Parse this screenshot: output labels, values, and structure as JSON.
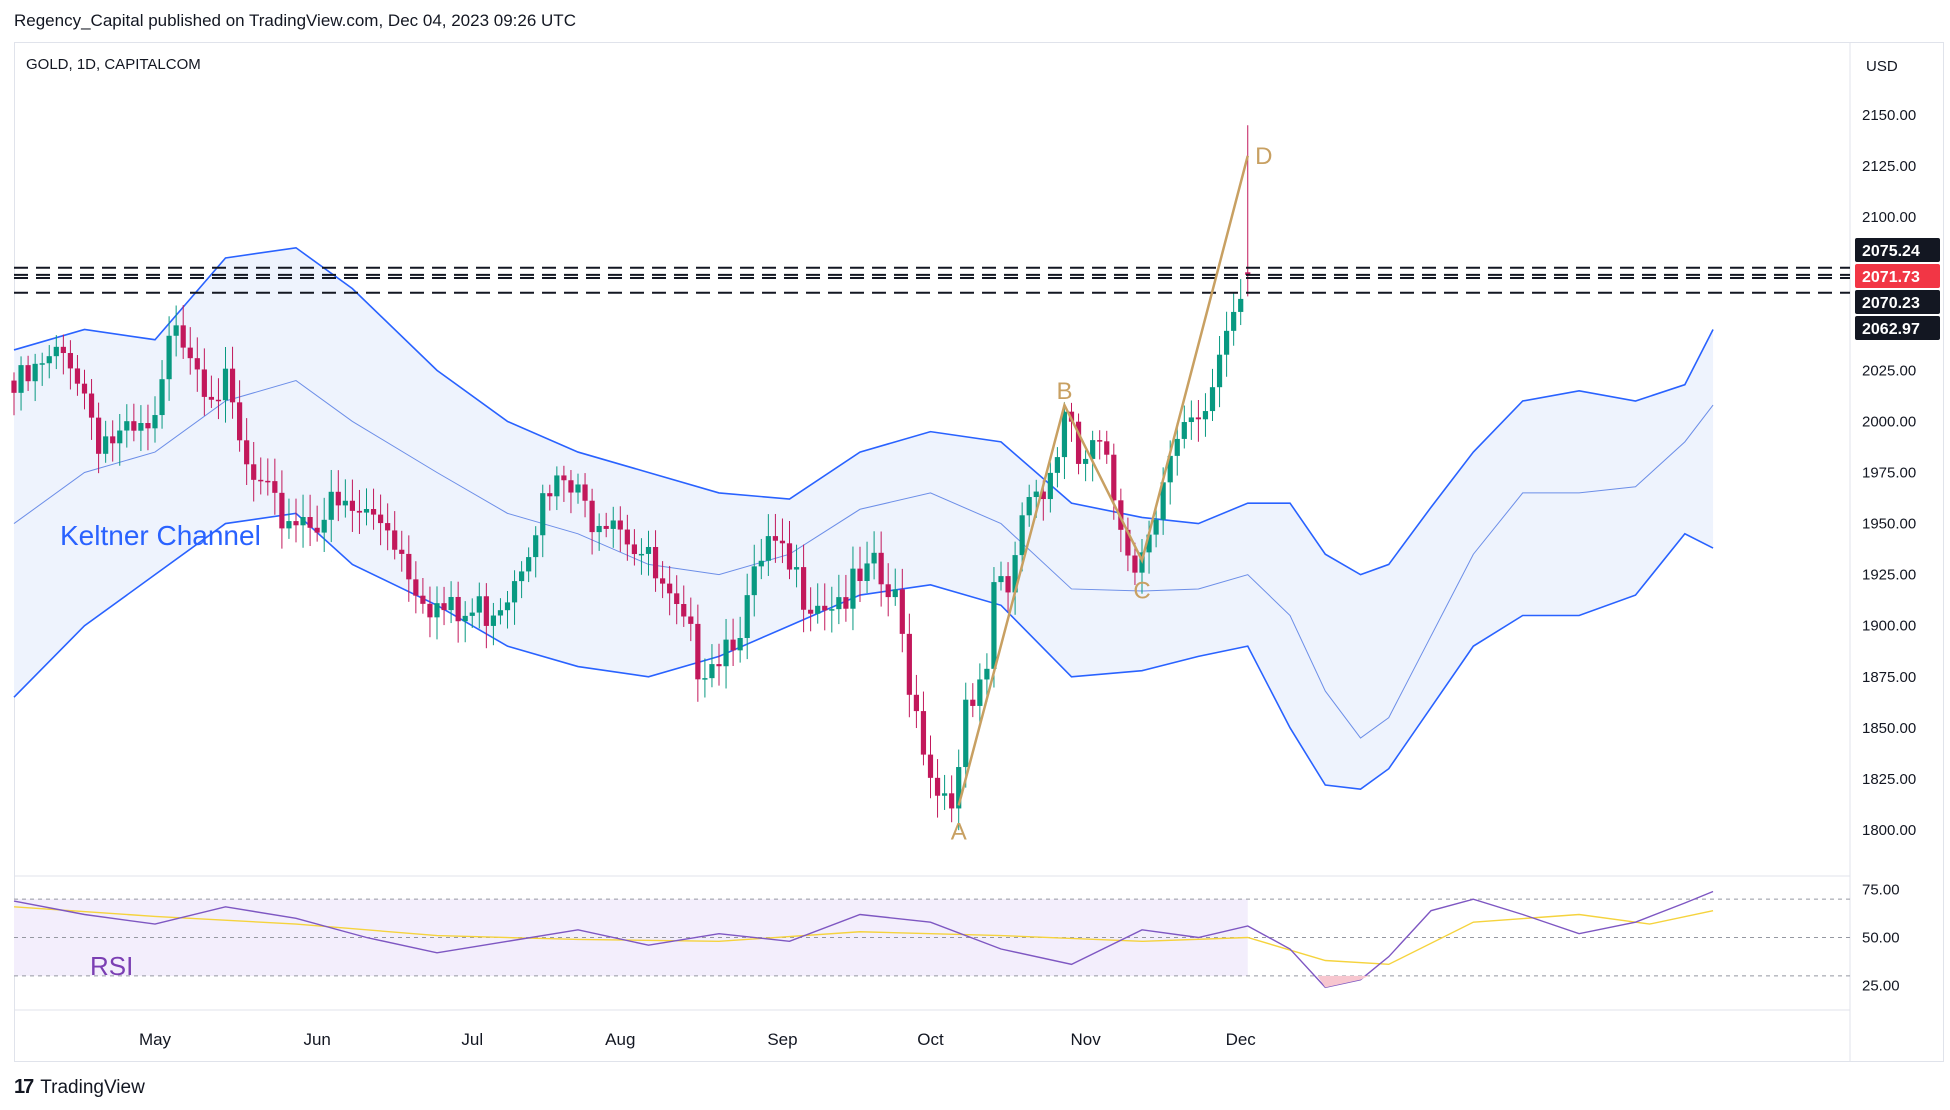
{
  "header": {
    "published_line": "Regency_Capital published on TradingView.com, Dec 04, 2023 09:26 UTC"
  },
  "symbol": {
    "title": "GOLD, 1D, CAPITALCOM",
    "currency": "USD"
  },
  "footer": {
    "brand": "TradingView",
    "brand_mark": "17"
  },
  "colors": {
    "up": "#089981",
    "down": "#c2185b",
    "keltner_band": "#2962ff",
    "keltner_basis": "#6c8ee8",
    "keltner_fill": "#eef3fd",
    "pattern": "#c8a062",
    "rsi_line": "#7e57c2",
    "rsi_ma": "#f5d33d",
    "rsi_fill": "#f3eefc"
  },
  "price_labels": [
    {
      "value": "2075.24",
      "bg": "#131722"
    },
    {
      "value": "2071.73",
      "bg": "#f23645"
    },
    {
      "value": "2070.23",
      "bg": "#131722"
    },
    {
      "value": "2062.97",
      "bg": "#131722"
    }
  ],
  "annotations": {
    "keltner": "Keltner Channel",
    "rsi": "RSI"
  },
  "chart_data": {
    "type": "candlestick",
    "title": "GOLD, 1D, CAPITALCOM",
    "y_axis": {
      "ticks": [
        1800,
        1825,
        1850,
        1875,
        1900,
        1925,
        1950,
        1975,
        2000,
        2025,
        2050,
        2075,
        2100,
        2125,
        2150
      ],
      "tick_labels": [
        "1800.00",
        "1825.00",
        "1850.00",
        "1875.00",
        "1900.00",
        "1925.00",
        "1950.00",
        "1975.00",
        "2000.00",
        "2025.00",
        "",
        "",
        "2100.00",
        "2125.00",
        "2150.00"
      ],
      "range": [
        1790,
        2160
      ]
    },
    "x_axis": {
      "months": [
        {
          "label": "May",
          "date": "2023-05-01"
        },
        {
          "label": "Jun",
          "date": "2023-06-01"
        },
        {
          "label": "Jul",
          "date": "2023-07-03"
        },
        {
          "label": "Aug",
          "date": "2023-08-01"
        },
        {
          "label": "Sep",
          "date": "2023-09-01"
        },
        {
          "label": "Oct",
          "date": "2023-10-02"
        },
        {
          "label": "Nov",
          "date": "2023-11-01"
        },
        {
          "label": "Dec",
          "date": "2023-12-01"
        }
      ]
    },
    "close_path": [
      {
        "date": "2023-04-03",
        "close": 2020
      },
      {
        "date": "2023-04-13",
        "close": 2040
      },
      {
        "date": "2023-04-19",
        "close": 2000
      },
      {
        "date": "2023-04-25",
        "close": 1995
      },
      {
        "date": "2023-05-01",
        "close": 2000
      },
      {
        "date": "2023-05-04",
        "close": 2060
      },
      {
        "date": "2023-05-10",
        "close": 2030
      },
      {
        "date": "2023-05-15",
        "close": 2020
      },
      {
        "date": "2023-05-18",
        "close": 1980
      },
      {
        "date": "2023-05-24",
        "close": 1960
      },
      {
        "date": "2023-05-30",
        "close": 1960
      },
      {
        "date": "2023-06-05",
        "close": 1962
      },
      {
        "date": "2023-06-09",
        "close": 1960
      },
      {
        "date": "2023-06-15",
        "close": 1958
      },
      {
        "date": "2023-06-20",
        "close": 1935
      },
      {
        "date": "2023-06-26",
        "close": 1915
      },
      {
        "date": "2023-06-29",
        "close": 1908
      },
      {
        "date": "2023-07-05",
        "close": 1915
      },
      {
        "date": "2023-07-10",
        "close": 1925
      },
      {
        "date": "2023-07-14",
        "close": 1960
      },
      {
        "date": "2023-07-20",
        "close": 1975
      },
      {
        "date": "2023-07-25",
        "close": 1962
      },
      {
        "date": "2023-07-31",
        "close": 1965
      },
      {
        "date": "2023-08-04",
        "close": 1942
      },
      {
        "date": "2023-08-10",
        "close": 1913
      },
      {
        "date": "2023-08-16",
        "close": 1890
      },
      {
        "date": "2023-08-21",
        "close": 1895
      },
      {
        "date": "2023-08-25",
        "close": 1915
      },
      {
        "date": "2023-08-30",
        "close": 1943
      },
      {
        "date": "2023-09-05",
        "close": 1927
      },
      {
        "date": "2023-09-11",
        "close": 1920
      },
      {
        "date": "2023-09-15",
        "close": 1922
      },
      {
        "date": "2023-09-20",
        "close": 1930
      },
      {
        "date": "2023-09-25",
        "close": 1915
      },
      {
        "date": "2023-09-28",
        "close": 1865
      },
      {
        "date": "2023-10-03",
        "close": 1825
      },
      {
        "date": "2023-10-06",
        "close": 1830
      },
      {
        "date": "2023-10-09",
        "close": 1860
      },
      {
        "date": "2023-10-12",
        "close": 1875
      },
      {
        "date": "2023-10-13",
        "close": 1925
      },
      {
        "date": "2023-10-17",
        "close": 1925
      },
      {
        "date": "2023-10-20",
        "close": 1980
      },
      {
        "date": "2023-10-24",
        "close": 1970
      },
      {
        "date": "2023-10-27",
        "close": 2005
      },
      {
        "date": "2023-10-31",
        "close": 1985
      },
      {
        "date": "2023-11-03",
        "close": 1990
      },
      {
        "date": "2023-11-07",
        "close": 1968
      },
      {
        "date": "2023-11-10",
        "close": 1940
      },
      {
        "date": "2023-11-13",
        "close": 1943
      },
      {
        "date": "2023-11-16",
        "close": 1982
      },
      {
        "date": "2023-11-21",
        "close": 1997
      },
      {
        "date": "2023-11-24",
        "close": 2003
      },
      {
        "date": "2023-11-28",
        "close": 2042
      },
      {
        "date": "2023-12-01",
        "close": 2072
      },
      {
        "date": "2023-12-04",
        "close": 2071
      }
    ],
    "keltner_upper": [
      [
        0,
        2035
      ],
      [
        10,
        2045
      ],
      [
        20,
        2040
      ],
      [
        30,
        2080
      ],
      [
        40,
        2085
      ],
      [
        48,
        2065
      ],
      [
        60,
        2025
      ],
      [
        70,
        2000
      ],
      [
        80,
        1985
      ],
      [
        90,
        1975
      ],
      [
        100,
        1965
      ],
      [
        110,
        1962
      ],
      [
        120,
        1985
      ],
      [
        130,
        1995
      ],
      [
        140,
        1990
      ],
      [
        150,
        1960
      ],
      [
        160,
        1953
      ],
      [
        168,
        1950
      ],
      [
        175,
        1960
      ],
      [
        181,
        1960
      ],
      [
        186,
        1935
      ],
      [
        191,
        1925
      ],
      [
        195,
        1930
      ],
      [
        201,
        1958
      ],
      [
        207,
        1985
      ],
      [
        214,
        2010
      ],
      [
        222,
        2015
      ],
      [
        230,
        2010
      ],
      [
        237,
        2018
      ],
      [
        241,
        2045
      ]
    ],
    "keltner_basis": [
      [
        0,
        1950
      ],
      [
        10,
        1975
      ],
      [
        20,
        1985
      ],
      [
        30,
        2010
      ],
      [
        40,
        2020
      ],
      [
        48,
        2000
      ],
      [
        60,
        1975
      ],
      [
        70,
        1955
      ],
      [
        80,
        1945
      ],
      [
        90,
        1930
      ],
      [
        100,
        1925
      ],
      [
        110,
        1935
      ],
      [
        120,
        1957
      ],
      [
        130,
        1965
      ],
      [
        140,
        1950
      ],
      [
        150,
        1918
      ],
      [
        160,
        1917
      ],
      [
        168,
        1918
      ],
      [
        175,
        1925
      ],
      [
        181,
        1905
      ],
      [
        186,
        1868
      ],
      [
        191,
        1845
      ],
      [
        195,
        1855
      ],
      [
        201,
        1895
      ],
      [
        207,
        1935
      ],
      [
        214,
        1965
      ],
      [
        222,
        1965
      ],
      [
        230,
        1968
      ],
      [
        237,
        1990
      ],
      [
        241,
        2008
      ]
    ],
    "keltner_lower": [
      [
        0,
        1865
      ],
      [
        10,
        1900
      ],
      [
        20,
        1925
      ],
      [
        30,
        1950
      ],
      [
        40,
        1955
      ],
      [
        48,
        1930
      ],
      [
        60,
        1910
      ],
      [
        70,
        1890
      ],
      [
        80,
        1880
      ],
      [
        90,
        1875
      ],
      [
        100,
        1885
      ],
      [
        110,
        1900
      ],
      [
        120,
        1915
      ],
      [
        130,
        1920
      ],
      [
        140,
        1910
      ],
      [
        150,
        1875
      ],
      [
        160,
        1878
      ],
      [
        168,
        1885
      ],
      [
        175,
        1890
      ],
      [
        181,
        1850
      ],
      [
        186,
        1822
      ],
      [
        191,
        1820
      ],
      [
        195,
        1830
      ],
      [
        201,
        1860
      ],
      [
        207,
        1890
      ],
      [
        214,
        1905
      ],
      [
        222,
        1905
      ],
      [
        230,
        1915
      ],
      [
        237,
        1945
      ],
      [
        241,
        1938
      ]
    ],
    "horizontal_levels": [
      2075.24,
      2071.73,
      2070.23,
      2062.97
    ],
    "pattern": {
      "points": [
        {
          "label": "A",
          "date": "2023-10-06",
          "price": 1812
        },
        {
          "label": "B",
          "date": "2023-10-27",
          "price": 2008
        },
        {
          "label": "C",
          "date": "2023-11-13",
          "price": 1932
        },
        {
          "label": "D",
          "date": "2023-12-04",
          "price": 2130
        }
      ]
    },
    "rsi": {
      "ticks": [
        25,
        50,
        75
      ],
      "tick_labels": [
        "25.00",
        "50.00",
        "75.00"
      ],
      "levels": [
        30,
        70
      ],
      "values": [
        [
          0,
          69
        ],
        [
          10,
          62
        ],
        [
          20,
          57
        ],
        [
          30,
          66
        ],
        [
          40,
          60
        ],
        [
          50,
          50
        ],
        [
          60,
          42
        ],
        [
          70,
          48
        ],
        [
          80,
          54
        ],
        [
          90,
          46
        ],
        [
          100,
          52
        ],
        [
          110,
          48
        ],
        [
          120,
          62
        ],
        [
          130,
          58
        ],
        [
          140,
          44
        ],
        [
          150,
          36
        ],
        [
          160,
          54
        ],
        [
          168,
          50
        ],
        [
          175,
          56
        ],
        [
          181,
          44
        ],
        [
          186,
          24
        ],
        [
          191,
          28
        ],
        [
          195,
          40
        ],
        [
          201,
          64
        ],
        [
          207,
          70
        ],
        [
          214,
          62
        ],
        [
          222,
          52
        ],
        [
          230,
          58
        ],
        [
          237,
          68
        ],
        [
          241,
          74
        ]
      ],
      "ma": [
        [
          0,
          66
        ],
        [
          20,
          61
        ],
        [
          40,
          57
        ],
        [
          60,
          51
        ],
        [
          80,
          49
        ],
        [
          100,
          48
        ],
        [
          120,
          53
        ],
        [
          140,
          51
        ],
        [
          160,
          48
        ],
        [
          175,
          50
        ],
        [
          186,
          38
        ],
        [
          195,
          36
        ],
        [
          207,
          58
        ],
        [
          222,
          62
        ],
        [
          232,
          57
        ],
        [
          241,
          64
        ]
      ]
    }
  }
}
